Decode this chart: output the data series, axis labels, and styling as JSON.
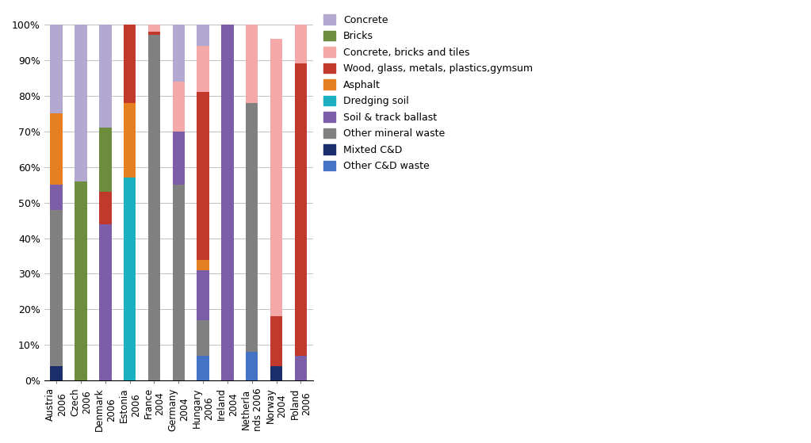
{
  "categories": [
    "Austria\n2006",
    "Czech\n2006",
    "Denmark\n2006",
    "Estonia\n2006",
    "France\n2004",
    "Germany\n2004",
    "Hungary\n2006",
    "Ireland\n2004",
    "Netherla\nnds 2006",
    "Norway\n2004",
    "Poland\n2006"
  ],
  "series": {
    "Other C&D waste": [
      0,
      0,
      0,
      0,
      0,
      0,
      7,
      0,
      8,
      0,
      0
    ],
    "Mixted C&D": [
      4,
      0,
      0,
      0,
      0,
      0,
      0,
      0,
      0,
      4,
      0
    ],
    "Other mineral waste": [
      44,
      0,
      0,
      0,
      97,
      55,
      10,
      0,
      70,
      0,
      0
    ],
    "Soil & track ballast": [
      7,
      0,
      44,
      0,
      0,
      15,
      14,
      100,
      0,
      0,
      7
    ],
    "Dredging soil": [
      0,
      0,
      0,
      57,
      0,
      0,
      0,
      0,
      0,
      0,
      0
    ],
    "Asphalt": [
      20,
      0,
      0,
      21,
      0,
      0,
      3,
      0,
      0,
      0,
      0
    ],
    "Wood, glass, metals, plastics,gymsum": [
      0,
      0,
      9,
      22,
      1,
      0,
      47,
      0,
      0,
      14,
      82
    ],
    "Concrete, bricks and tiles": [
      0,
      0,
      0,
      0,
      2,
      14,
      13,
      0,
      22,
      78,
      11
    ],
    "Bricks": [
      0,
      56,
      18,
      0,
      0,
      0,
      0,
      0,
      0,
      0,
      0
    ],
    "Concrete": [
      25,
      44,
      29,
      0,
      0,
      16,
      6,
      0,
      0,
      0,
      0
    ]
  },
  "colors": {
    "Concrete": "#b3a8d0",
    "Bricks": "#6d8c3e",
    "Concrete, bricks and tiles": "#f4a8a8",
    "Wood, glass, metals, plastics,gymsum": "#c0392b",
    "Asphalt": "#e67e22",
    "Dredging soil": "#1ab0c0",
    "Soil & track ballast": "#7b5ea7",
    "Other mineral waste": "#808080",
    "Mixted C&D": "#1a2e6c",
    "Other C&D waste": "#4472c4"
  },
  "legend_order": [
    "Concrete",
    "Bricks",
    "Concrete, bricks and tiles",
    "Wood, glass, metals, plastics,gymsum",
    "Asphalt",
    "Dredging soil",
    "Soil & track ballast",
    "Other mineral waste",
    "Mixted C&D",
    "Other C&D waste"
  ],
  "yticks": [
    0,
    10,
    20,
    30,
    40,
    50,
    60,
    70,
    80,
    90,
    100
  ],
  "background_color": "#ffffff",
  "figsize": [
    10.23,
    5.59
  ],
  "dpi": 100,
  "bar_width": 0.5
}
